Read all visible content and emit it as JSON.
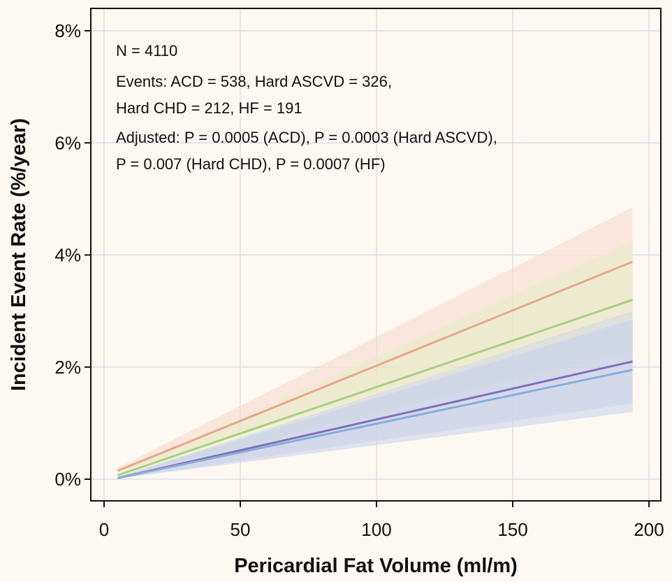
{
  "chart_data": {
    "type": "line",
    "title": "",
    "xlabel": "Pericardial Fat Volume (ml/m)",
    "ylabel": "Incident Event Rate (%/year)",
    "xlim": [
      0,
      200
    ],
    "ylim": [
      0,
      8
    ],
    "x_ticks": [
      {
        "value": 0,
        "label": "0"
      },
      {
        "value": 50,
        "label": "50"
      },
      {
        "value": 100,
        "label": "100"
      },
      {
        "value": 150,
        "label": "150"
      },
      {
        "value": 200,
        "label": "200"
      }
    ],
    "y_ticks": [
      {
        "value": 0,
        "label": "0%"
      },
      {
        "value": 2,
        "label": "2%"
      },
      {
        "value": 4,
        "label": "4%"
      },
      {
        "value": 6,
        "label": "6%"
      },
      {
        "value": 8,
        "label": "8%"
      }
    ],
    "grid": true,
    "annotations": [
      "N = 4110",
      "Events: ACD = 538, Hard ASCVD = 326,",
      "Hard CHD = 212, HF = 191",
      "Adjusted: P = 0.0005 (ACD), P = 0.0003 (Hard ASCVD),",
      "P = 0.007 (Hard CHD), P = 0.0007 (HF)"
    ],
    "series": [
      {
        "color": "#e8a789",
        "band_color": "#f6d9cc",
        "x": [
          5,
          194
        ],
        "y": [
          0.15,
          3.88
        ],
        "lower": [
          0.12,
          2.95
        ],
        "upper": [
          0.2,
          4.85
        ]
      },
      {
        "color": "#a8d080",
        "band_color": "#e6ecc4",
        "x": [
          5,
          194
        ],
        "y": [
          0.07,
          3.2
        ],
        "lower": [
          0.05,
          2.3
        ],
        "upper": [
          0.1,
          4.25
        ]
      },
      {
        "color": "#8070b8",
        "band_color": "#cfd2e4",
        "x": [
          5,
          194
        ],
        "y": [
          0.02,
          2.1
        ],
        "lower": [
          0.01,
          1.35
        ],
        "upper": [
          0.04,
          3.0
        ]
      },
      {
        "color": "#86aedc",
        "band_color": "#c6d2ea",
        "x": [
          5,
          194
        ],
        "y": [
          0.02,
          1.95
        ],
        "lower": [
          0.01,
          1.2
        ],
        "upper": [
          0.04,
          2.85
        ]
      }
    ]
  }
}
